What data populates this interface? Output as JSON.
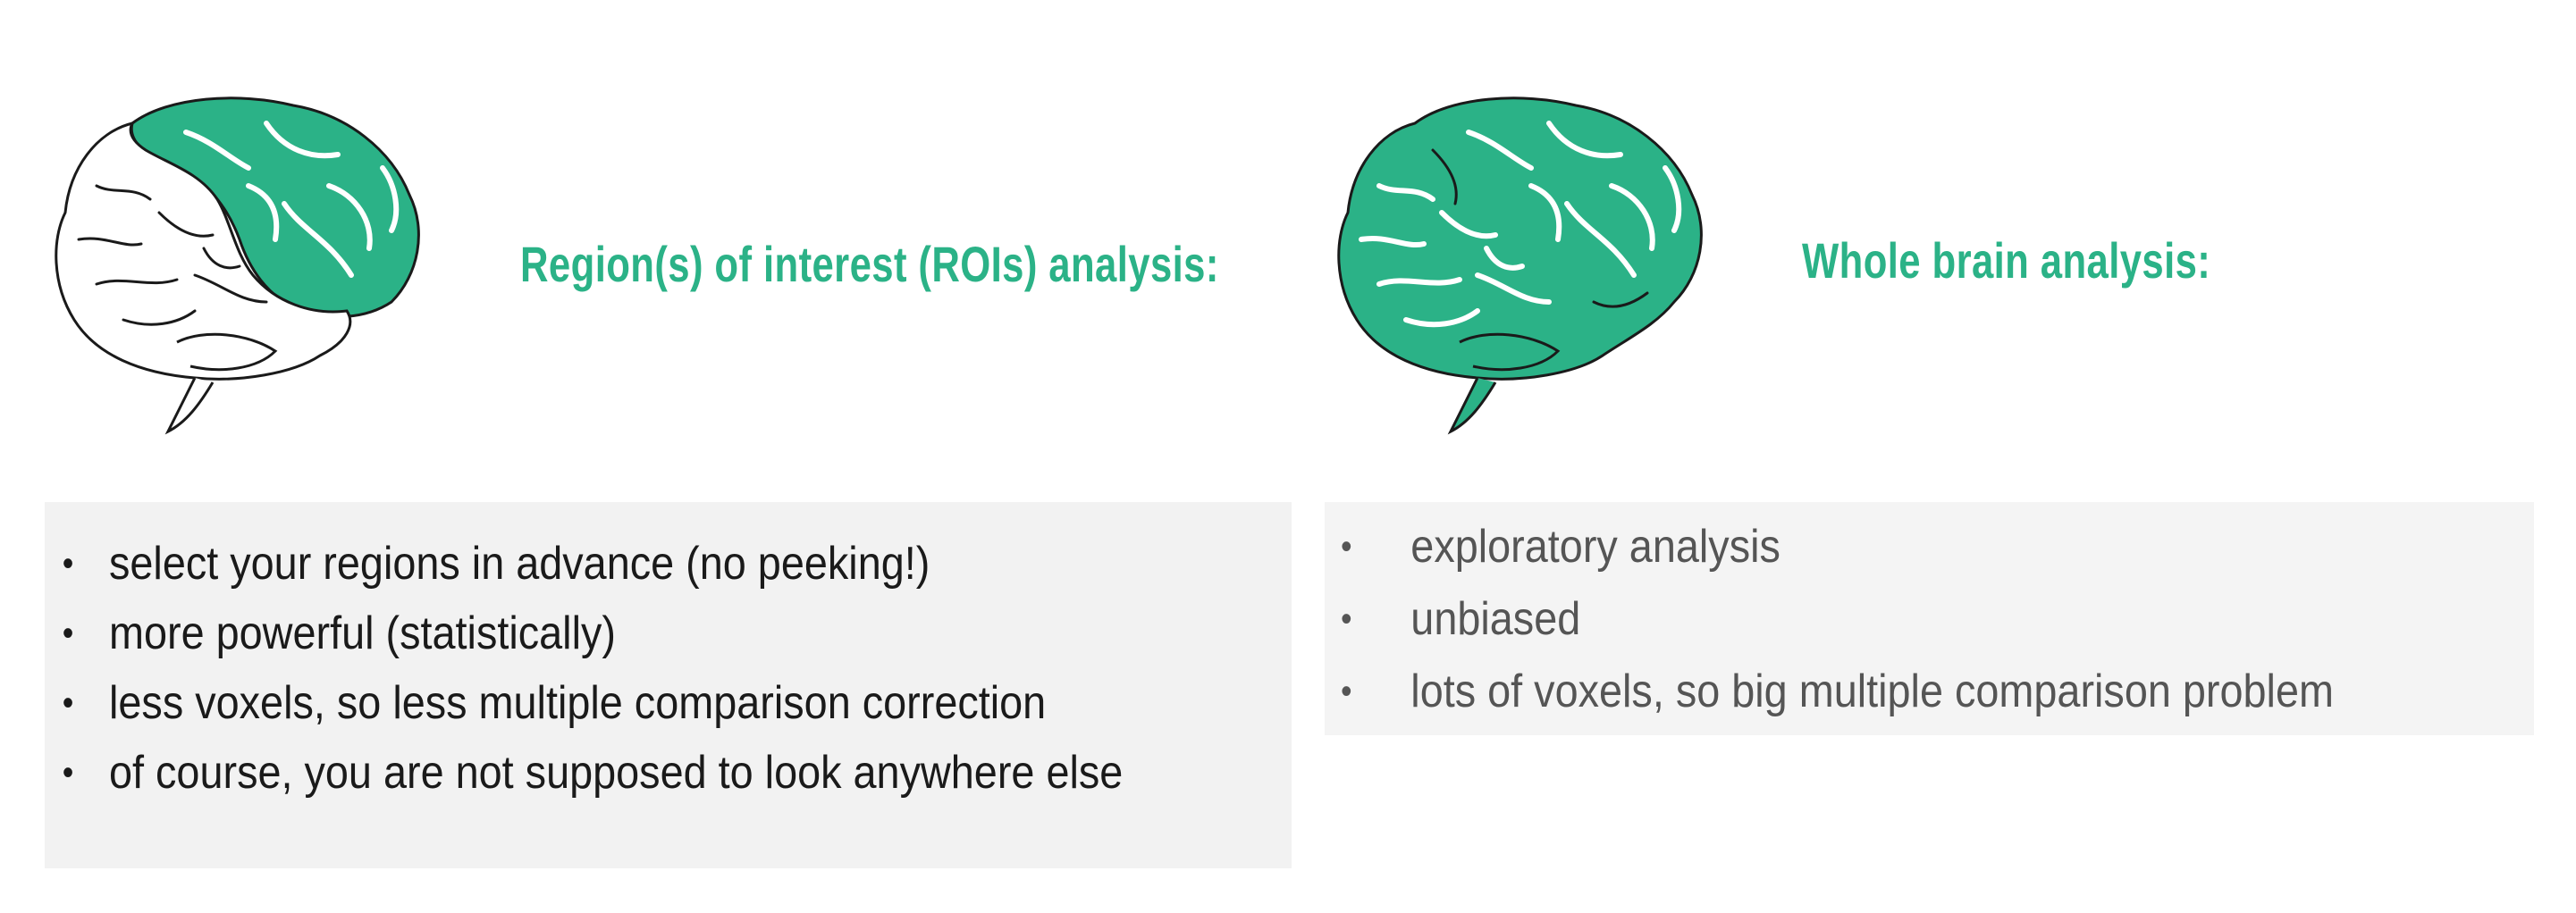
{
  "colors": {
    "accent": "#2bb287",
    "panel_background": "#f2f2f2",
    "left_text": "#1a1a1a",
    "right_text": "#555555"
  },
  "left": {
    "icon": "brain-partially-highlighted-icon",
    "heading": "Region(s) of interest (ROIs) analysis:",
    "bullet": "•",
    "items": [
      "select your regions in advance (no peeking!)",
      "more powerful (statistically)",
      "less voxels, so less multiple comparison correction",
      "of course, you are not supposed to look anywhere else"
    ]
  },
  "right": {
    "icon": "brain-fully-highlighted-icon",
    "heading": "Whole brain analysis:",
    "bullet": "•",
    "items": [
      "exploratory analysis",
      "unbiased",
      "lots of voxels, so big multiple comparison problem"
    ]
  }
}
